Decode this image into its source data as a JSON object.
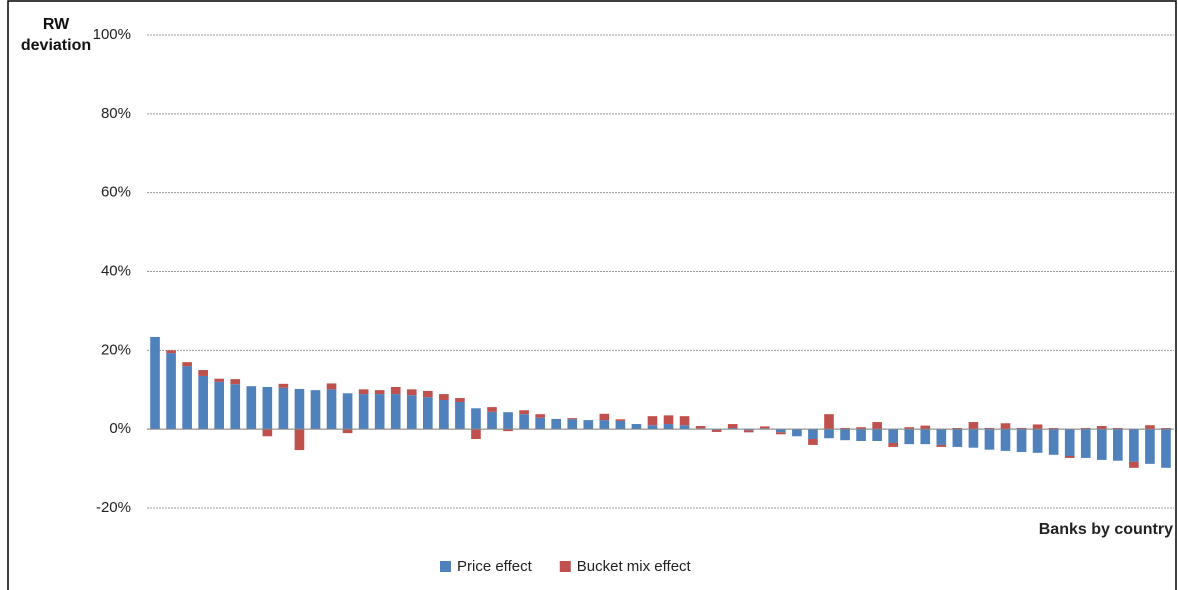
{
  "chart_data": {
    "type": "stacked_bar",
    "y_label": "RW deviation",
    "x_label": "Banks by country",
    "categories": [
      null,
      null,
      null,
      null,
      null,
      null,
      null,
      null,
      null,
      null,
      null,
      null,
      null,
      null,
      null,
      null,
      null,
      null,
      null,
      null,
      null,
      null,
      null,
      null,
      null,
      null,
      null,
      null,
      null,
      null,
      null,
      null,
      null,
      null,
      null,
      null,
      null,
      null,
      null,
      null,
      null,
      null,
      null,
      null,
      null,
      null,
      null,
      null,
      null,
      null,
      null,
      null,
      null,
      null,
      null,
      null,
      null,
      null,
      null,
      null,
      null,
      null,
      null,
      null
    ],
    "series": [
      {
        "name": "Price effect",
        "color": "#4f81bd",
        "values": [
          23.4,
          19.3,
          16.0,
          13.5,
          12.0,
          11.4,
          10.9,
          10.7,
          10.5,
          10.2,
          9.9,
          10.1,
          9.1,
          8.9,
          8.9,
          8.9,
          8.6,
          8.1,
          7.4,
          6.9,
          5.3,
          4.4,
          4.3,
          3.8,
          2.9,
          2.6,
          2.5,
          2.3,
          2.3,
          2.1,
          1.3,
          1.0,
          1.3,
          1.0,
          0.2,
          -0.2,
          0.3,
          -0.3,
          0.2,
          -0.8,
          -1.8,
          -2.5,
          -2.3,
          -2.8,
          -3.0,
          -3.0,
          -3.5,
          -3.8,
          -3.8,
          -4.0,
          -4.5,
          -4.7,
          -5.2,
          -5.5,
          -5.8,
          -6.0,
          -6.5,
          -6.8,
          -7.3,
          -7.8,
          -8.0,
          -8.3,
          -8.8,
          -9.8
        ]
      },
      {
        "name": "Bucket mix effect",
        "color": "#c0504d",
        "values": [
          0,
          0.7,
          1.0,
          1.5,
          0.8,
          1.3,
          0,
          -1.8,
          1.0,
          -5.3,
          0,
          1.5,
          -1.0,
          1.2,
          1.0,
          1.8,
          1.5,
          1.6,
          1.5,
          1.0,
          -2.5,
          1.2,
          -0.5,
          1.0,
          0.9,
          0,
          0.3,
          0,
          1.6,
          0.4,
          0,
          2.3,
          2.2,
          2.3,
          0.6,
          -0.5,
          1.0,
          -0.5,
          0.5,
          -0.5,
          0,
          -1.5,
          3.8,
          0.3,
          0.5,
          1.8,
          -1.0,
          0.5,
          0.9,
          -0.5,
          0.3,
          1.8,
          0.3,
          1.5,
          0.3,
          1.2,
          0.3,
          -0.5,
          0.3,
          0.8,
          0.3,
          -1.5,
          1.0,
          0.3
        ]
      }
    ],
    "ylim": [
      -20,
      100
    ],
    "yticks": [
      {
        "value": -20,
        "label": "-20%"
      },
      {
        "value": 0,
        "label": "0%"
      },
      {
        "value": 20,
        "label": "20%"
      },
      {
        "value": 40,
        "label": "40%"
      },
      {
        "value": 60,
        "label": "60%"
      },
      {
        "value": 80,
        "label": "80%"
      },
      {
        "value": 100,
        "label": "100%"
      }
    ],
    "grid": true
  }
}
